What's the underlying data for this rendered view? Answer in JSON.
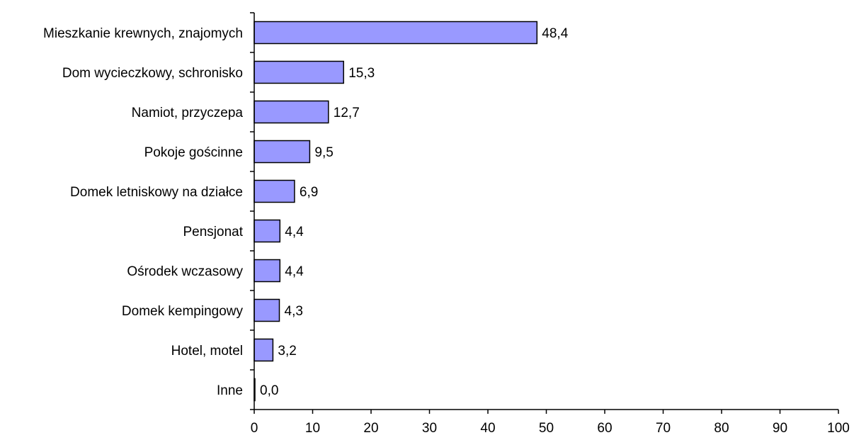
{
  "chart_data": {
    "type": "bar",
    "orientation": "horizontal",
    "categories": [
      "Mieszkanie krewnych, znajomych",
      "Dom wycieczkowy, schronisko",
      "Namiot, przyczepa",
      "Pokoje gościnne",
      "Domek letniskowy na działce",
      "Pensjonat",
      "Ośrodek wczasowy",
      "Domek kempingowy",
      "Hotel, motel",
      "Inne"
    ],
    "values": [
      48.4,
      15.3,
      12.7,
      9.5,
      6.9,
      4.4,
      4.4,
      4.3,
      3.2,
      0.0
    ],
    "value_labels": [
      "48,4",
      "15,3",
      "12,7",
      "9,5",
      "6,9",
      "4,4",
      "4,4",
      "4,3",
      "3,2",
      "0,0"
    ],
    "xlim": [
      0,
      100
    ],
    "x_ticks": [
      0,
      10,
      20,
      30,
      40,
      50,
      60,
      70,
      80,
      90,
      100
    ],
    "x_tick_labels": [
      "0",
      "10",
      "20",
      "30",
      "40",
      "50",
      "60",
      "70",
      "80",
      "90",
      "100"
    ],
    "grid": false,
    "legend": "none",
    "colors": {
      "bar_fill": "#9999ff",
      "bar_stroke": "#000000",
      "axis": "#000000"
    }
  }
}
